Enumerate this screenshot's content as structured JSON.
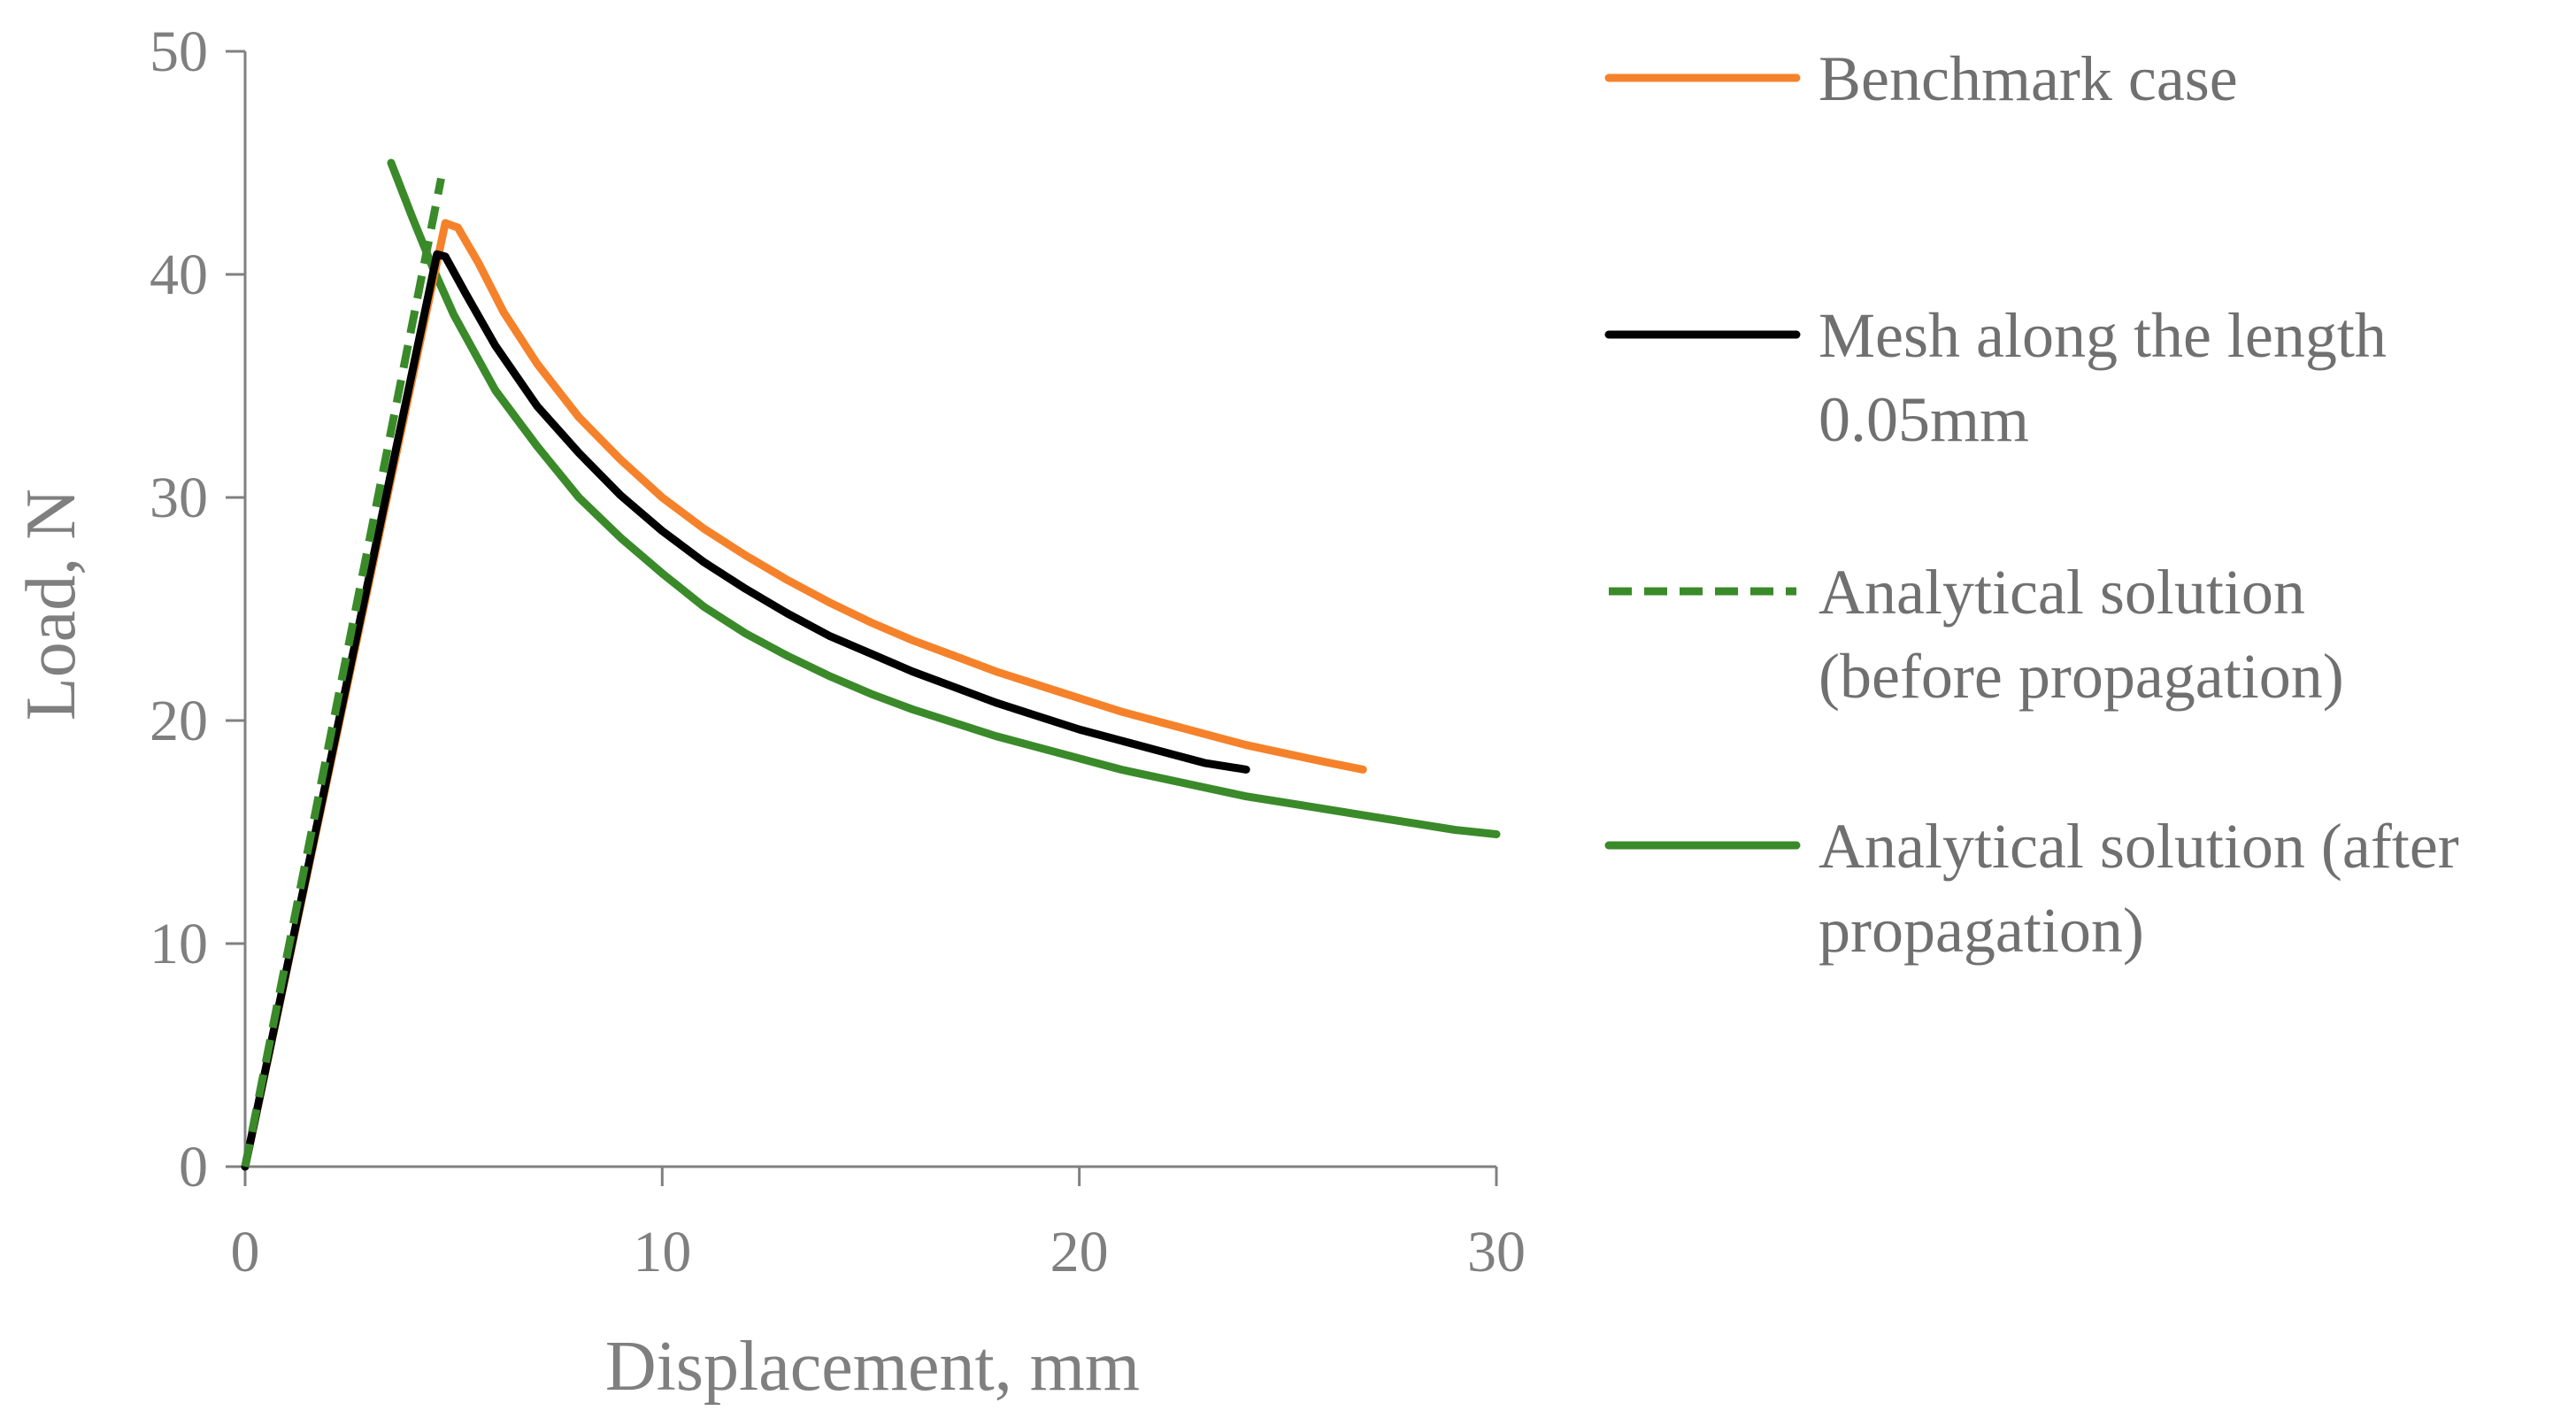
{
  "chart_data": {
    "type": "line",
    "title": "",
    "xlabel": "Displacement, mm",
    "ylabel": "Load, N",
    "xlim": [
      0,
      30
    ],
    "ylim": [
      0,
      50
    ],
    "xticks": [
      0,
      10,
      20,
      30
    ],
    "yticks": [
      0,
      10,
      20,
      30,
      40,
      50
    ],
    "grid": false,
    "legend_position": "right",
    "series": [
      {
        "name": "Benchmark case",
        "legend_lines": [
          "Benchmark case"
        ],
        "color": "#f5822a",
        "style": "solid",
        "x": [
          0,
          4.8,
          5.1,
          5.6,
          6.2,
          7,
          8,
          9,
          10,
          11,
          12,
          13,
          14,
          15,
          16,
          17,
          18,
          19,
          20,
          21,
          22,
          23,
          24,
          25,
          26,
          26.8
        ],
        "y": [
          0,
          42.3,
          42.1,
          40.5,
          38.3,
          36.0,
          33.6,
          31.7,
          30.0,
          28.6,
          27.4,
          26.3,
          25.3,
          24.4,
          23.6,
          22.9,
          22.2,
          21.6,
          21.0,
          20.4,
          19.9,
          19.4,
          18.9,
          18.5,
          18.1,
          17.8
        ]
      },
      {
        "name": "Mesh along the length 0.05mm",
        "legend_lines": [
          "Mesh along the length",
          "0.05mm"
        ],
        "color": "#000000",
        "style": "solid",
        "x": [
          0,
          4.6,
          4.8,
          5.3,
          6,
          7,
          8,
          9,
          10,
          11,
          12,
          13,
          14,
          15,
          16,
          17,
          18,
          19,
          20,
          21,
          22,
          23,
          24
        ],
        "y": [
          0,
          40.9,
          40.8,
          39.1,
          36.8,
          34.1,
          32.0,
          30.1,
          28.5,
          27.1,
          25.9,
          24.8,
          23.8,
          23.0,
          22.2,
          21.5,
          20.8,
          20.2,
          19.6,
          19.1,
          18.6,
          18.1,
          17.8
        ]
      },
      {
        "name": "Analytical solution (before propagation)",
        "legend_lines": [
          "Analytical solution",
          "(before propagation)"
        ],
        "color": "#3a8a2a",
        "style": "dashed",
        "x": [
          0,
          4.7
        ],
        "y": [
          0,
          44.3
        ]
      },
      {
        "name": "Analytical solution (after propagation)",
        "legend_lines": [
          "Analytical solution (after",
          "propagation)"
        ],
        "color": "#3a8a2a",
        "style": "solid",
        "x": [
          3.5,
          4,
          4.5,
          5,
          5.5,
          6,
          7,
          8,
          9,
          10,
          11,
          12,
          13,
          14,
          15,
          16,
          17,
          18,
          19,
          20,
          21,
          22,
          23,
          24,
          25,
          26,
          27,
          28,
          29,
          30
        ],
        "y": [
          45.0,
          42.6,
          40.3,
          38.2,
          36.5,
          34.8,
          32.3,
          30.0,
          28.2,
          26.6,
          25.1,
          23.9,
          22.9,
          22.0,
          21.2,
          20.5,
          19.9,
          19.3,
          18.8,
          18.3,
          17.8,
          17.4,
          17.0,
          16.6,
          16.3,
          16.0,
          15.7,
          15.4,
          15.1,
          14.9
        ]
      }
    ]
  }
}
